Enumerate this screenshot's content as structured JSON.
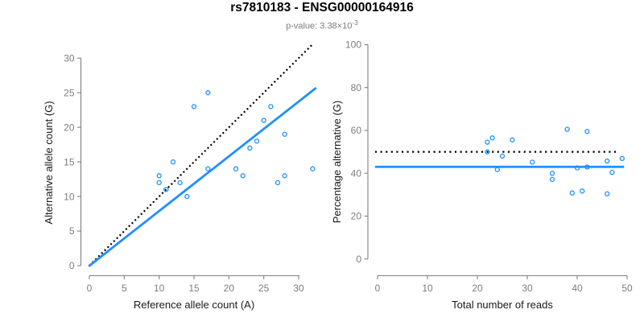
{
  "header": {
    "title": "rs7810183 - ENSG00000164916",
    "subtitle_prefix": "p-value: 3.38×10",
    "subtitle_exponent": "-3"
  },
  "colors": {
    "background": "#ffffff",
    "accent_blue": "#1E90FF",
    "dotted_black": "#000000",
    "axis_gray": "#808080",
    "tick_label_gray": "#7d7d7d",
    "axis_title_color": "#1a1a1a",
    "title_color": "#000000",
    "subtitle_gray": "#7b7b7b"
  },
  "chart_data": [
    {
      "type": "scatter",
      "panel": "left",
      "xlabel": "Reference allele count (A)",
      "ylabel": "Alternative allele count (G)",
      "xticks": [
        0,
        5,
        10,
        15,
        20,
        25,
        30
      ],
      "yticks": [
        0,
        5,
        10,
        15,
        20,
        25,
        30
      ],
      "xlim": [
        0,
        32.6
      ],
      "ylim": [
        0,
        31.9
      ],
      "grid": false,
      "legend": false,
      "points": [
        [
          10,
          12
        ],
        [
          10,
          13
        ],
        [
          11,
          11
        ],
        [
          12,
          15
        ],
        [
          13,
          12
        ],
        [
          14,
          10
        ],
        [
          15,
          23
        ],
        [
          17,
          14
        ],
        [
          17,
          25
        ],
        [
          21,
          14
        ],
        [
          22,
          13
        ],
        [
          23,
          17
        ],
        [
          24,
          18
        ],
        [
          25,
          21
        ],
        [
          26,
          23
        ],
        [
          27,
          12
        ],
        [
          28,
          13
        ],
        [
          28,
          19
        ],
        [
          32,
          14
        ]
      ],
      "lines": [
        {
          "name": "identity-line",
          "style": "dotted",
          "color": "#000000",
          "dash": "2 3.3",
          "width": 2.2,
          "from": [
            0,
            0
          ],
          "to": [
            31.9,
            31.9
          ],
          "meaning": "y = x"
        },
        {
          "name": "fit-line",
          "style": "solid",
          "color": "#1E90FF",
          "width": 2.8,
          "from": [
            -0.1,
            -0.1
          ],
          "to": [
            32.5,
            25.7
          ],
          "slope_approx": 0.79
        }
      ]
    },
    {
      "type": "scatter",
      "panel": "right",
      "xlabel": "Total number of reads",
      "ylabel": "Percentage alternative (G)",
      "xticks": [
        0,
        10,
        20,
        30,
        40,
        50
      ],
      "yticks": [
        0,
        20,
        40,
        60,
        80,
        100
      ],
      "xlim": [
        0,
        50
      ],
      "ylim": [
        0,
        100
      ],
      "grid": false,
      "legend": false,
      "points": [
        [
          22,
          50
        ],
        [
          22,
          54.5
        ],
        [
          23,
          56.5
        ],
        [
          24,
          41.7
        ],
        [
          25,
          48
        ],
        [
          27,
          55.6
        ],
        [
          31,
          45.2
        ],
        [
          35,
          37.1
        ],
        [
          35,
          40
        ],
        [
          38,
          60.5
        ],
        [
          39,
          30.8
        ],
        [
          40,
          42.5
        ],
        [
          41,
          31.7
        ],
        [
          42,
          42.9
        ],
        [
          42,
          59.5
        ],
        [
          46,
          30.4
        ],
        [
          46,
          45.7
        ],
        [
          47,
          40.4
        ],
        [
          49,
          46.9
        ]
      ],
      "lines": [
        {
          "name": "reference-50pct-line",
          "style": "dotted",
          "color": "#000000",
          "dash": "2.2 4.4",
          "width": 2.2,
          "from": [
            -0.5,
            50
          ],
          "to": [
            48.3,
            50
          ],
          "meaning": "50% reference"
        },
        {
          "name": "fit-line",
          "style": "solid",
          "color": "#1E90FF",
          "width": 2.8,
          "from": [
            -0.5,
            43
          ],
          "to": [
            49.4,
            43
          ]
        }
      ]
    }
  ]
}
